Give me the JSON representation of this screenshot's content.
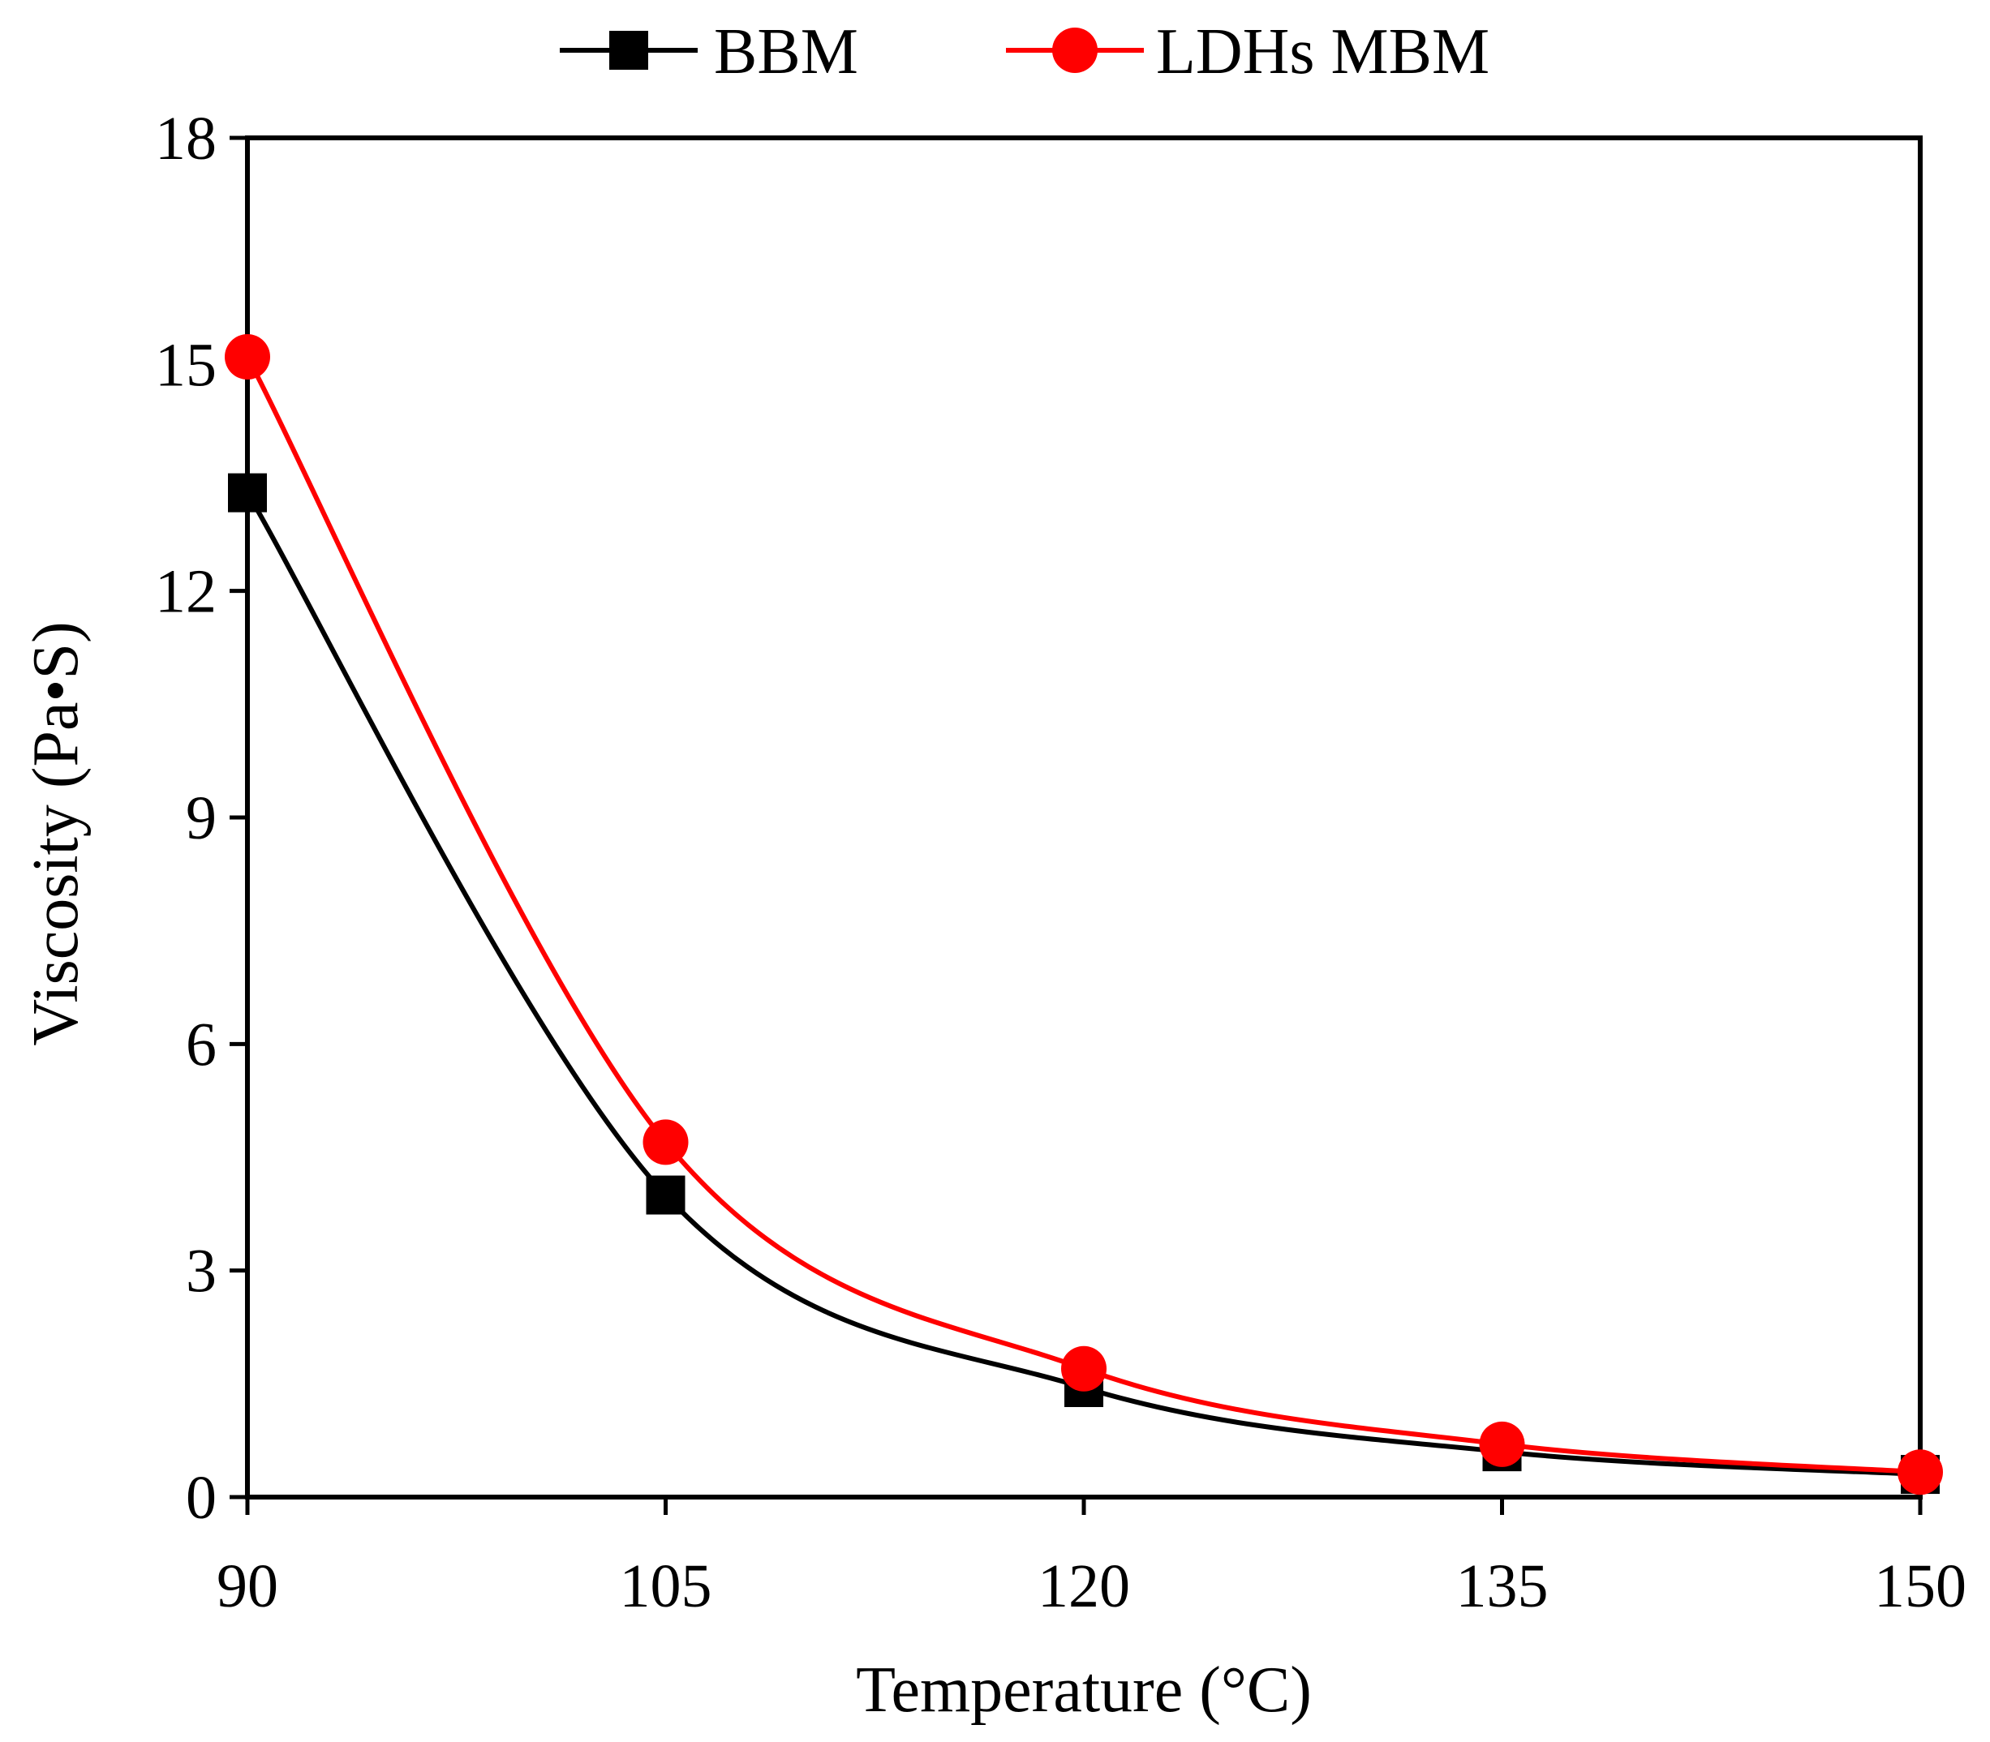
{
  "chart_data": {
    "type": "line",
    "title": "",
    "xlabel": "Temperature (°C)",
    "ylabel": "Viscosity (Pa•S)",
    "xlim": [
      90,
      150
    ],
    "ylim": [
      0,
      18
    ],
    "x_ticks": [
      90,
      105,
      120,
      135,
      150
    ],
    "y_ticks": [
      0,
      3,
      6,
      9,
      12,
      15,
      18
    ],
    "x_tick_labels": [
      "90",
      "105",
      "120",
      "135",
      "150"
    ],
    "y_tick_labels": [
      "0",
      "3",
      "6",
      "9",
      "12",
      "15",
      "18"
    ],
    "grid": false,
    "legend_position": "top-center",
    "x": [
      90,
      105,
      120,
      135,
      150
    ],
    "series": [
      {
        "name": "BBM",
        "color": "#000000",
        "marker": "square",
        "values": [
          13.3,
          4.0,
          1.45,
          0.6,
          0.3
        ]
      },
      {
        "name": "LDHs MBM",
        "color": "#ff0000",
        "marker": "circle",
        "values": [
          15.1,
          4.7,
          1.7,
          0.7,
          0.33
        ]
      }
    ]
  }
}
